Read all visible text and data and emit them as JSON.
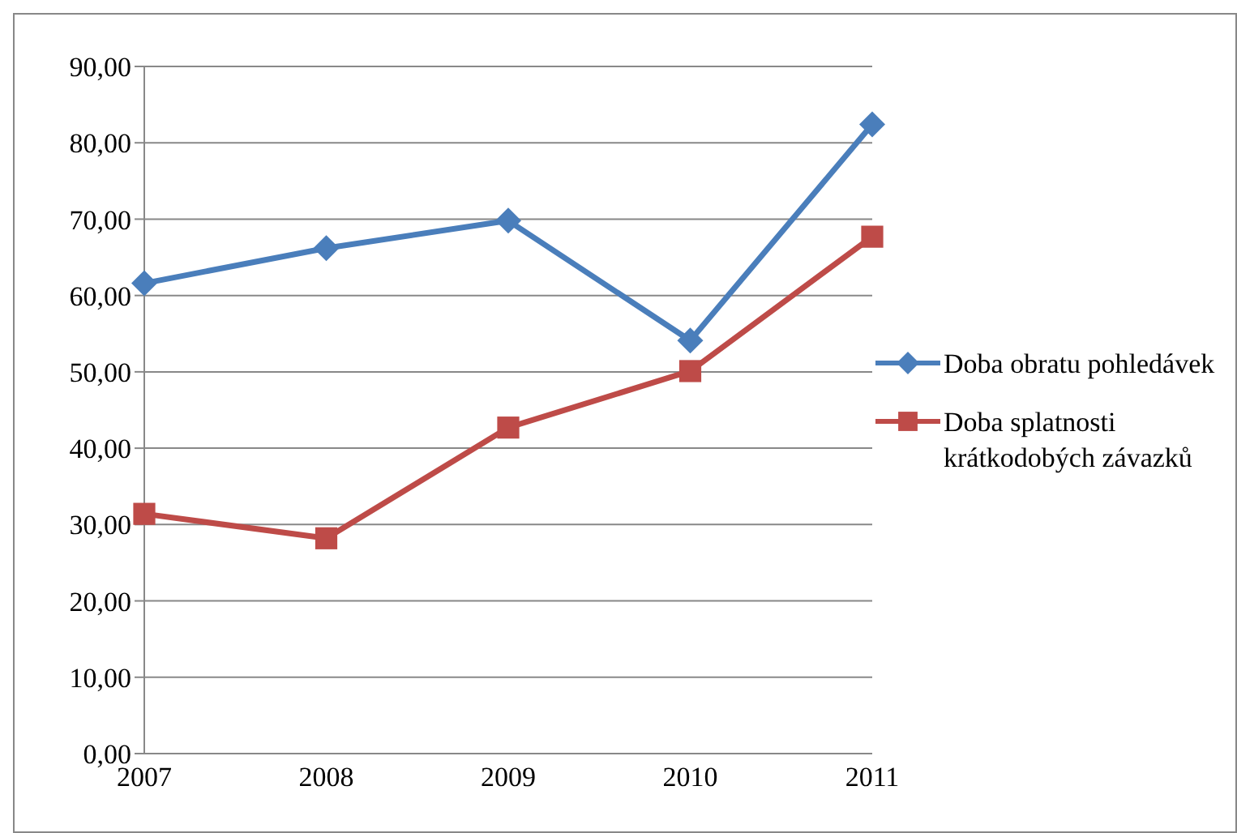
{
  "chart_data": {
    "type": "line",
    "categories": [
      "2007",
      "2008",
      "2009",
      "2010",
      "2011"
    ],
    "series": [
      {
        "name": "Doba obratu pohledávek",
        "color": "#4a7ebb",
        "marker": "diamond",
        "values": [
          61.6,
          66.2,
          69.8,
          54.1,
          82.4
        ]
      },
      {
        "name": "Doba splatnosti krátkodobých závazků",
        "color": "#be4b48",
        "marker": "square",
        "values": [
          31.4,
          28.2,
          42.7,
          50.1,
          67.7
        ]
      }
    ],
    "ylim": [
      0,
      90
    ],
    "yticks": [
      {
        "value": 0,
        "label": "0,00"
      },
      {
        "value": 10,
        "label": "10,00"
      },
      {
        "value": 20,
        "label": "20,00"
      },
      {
        "value": 30,
        "label": "30,00"
      },
      {
        "value": 40,
        "label": "40,00"
      },
      {
        "value": 50,
        "label": "50,00"
      },
      {
        "value": 60,
        "label": "60,00"
      },
      {
        "value": 70,
        "label": "70,00"
      },
      {
        "value": 80,
        "label": "80,00"
      },
      {
        "value": 90,
        "label": "90,00"
      }
    ],
    "grid": "y",
    "legend": "right",
    "line_style": "solid"
  }
}
